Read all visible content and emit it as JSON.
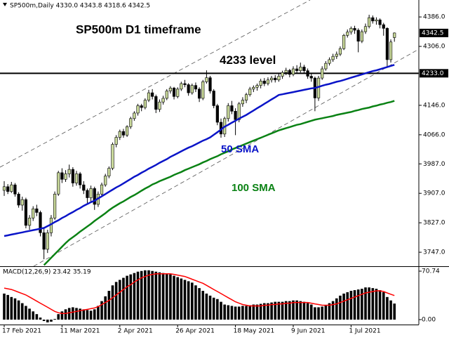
{
  "chart_data": {
    "type": "candlestick",
    "header": "SP500m,Daily  4330.0 4343.8 4318.6 4342.5",
    "title": "SP500m D1 timeframe",
    "categories": [
      "17 Feb 2021",
      null,
      null,
      null,
      null,
      null,
      null,
      null,
      null,
      null,
      null,
      null,
      null,
      null,
      null,
      null,
      "11 Mar 2021",
      null,
      null,
      null,
      null,
      null,
      null,
      null,
      null,
      null,
      null,
      null,
      null,
      null,
      null,
      null,
      "2 Apr 2021",
      null,
      null,
      null,
      null,
      null,
      null,
      null,
      null,
      null,
      null,
      null,
      null,
      null,
      null,
      null,
      "26 Apr 2021",
      null,
      null,
      null,
      null,
      null,
      null,
      null,
      null,
      null,
      null,
      null,
      null,
      null,
      null,
      null,
      "18 May 2021",
      null,
      null,
      null,
      null,
      null,
      null,
      null,
      null,
      null,
      null,
      null,
      null,
      null,
      null,
      null,
      "9 Jun 2021",
      null,
      null,
      null,
      null,
      null,
      null,
      null,
      null,
      null,
      null,
      null,
      null,
      null,
      null,
      null,
      "1 Jul 2021",
      null,
      null,
      null,
      null,
      null,
      null,
      null,
      null,
      null,
      null,
      null,
      null
    ],
    "open": [
      3915,
      3925,
      3912,
      3930,
      3905,
      3875,
      3890,
      3820,
      3840,
      3865,
      3855,
      3800,
      3755,
      3800,
      3840,
      3905,
      3963,
      3945,
      3960,
      3972,
      3935,
      3960,
      3930,
      3915,
      3895,
      3920,
      3877,
      3905,
      3930,
      3954,
      3975,
      4040,
      4059,
      4075,
      4065,
      4088,
      4110,
      4125,
      4145,
      4140,
      4160,
      4180,
      4170,
      4135,
      4155,
      4165,
      4185,
      4193,
      4170,
      4190,
      4205,
      4202,
      4180,
      4200,
      4190,
      4165,
      4210,
      4221,
      4185,
      4145,
      4100,
      4068,
      4110,
      4145,
      4130,
      4107,
      4150,
      4160,
      4175,
      4190,
      4195,
      4200,
      4212,
      4205,
      4215,
      4220,
      4215,
      4225,
      4235,
      4241,
      4230,
      4245,
      4240,
      4250,
      4240,
      4225,
      4220,
      4166,
      4220,
      4245,
      4260,
      4270,
      4279,
      4285,
      4300,
      4336,
      4345,
      4355,
      4350,
      4320,
      4346,
      4360,
      4384,
      4375,
      4378,
      4365,
      4355,
      4270,
      4330
    ],
    "high": [
      3940,
      3932,
      3938,
      3935,
      3910,
      3898,
      3895,
      3848,
      3872,
      3876,
      3860,
      3815,
      3808,
      3848,
      3912,
      3968,
      3975,
      3970,
      3985,
      3978,
      3968,
      3965,
      3940,
      3920,
      3928,
      3925,
      3912,
      3936,
      3960,
      3980,
      4045,
      4065,
      4080,
      4082,
      4092,
      4115,
      4130,
      4150,
      4150,
      4165,
      4188,
      4190,
      4175,
      4162,
      4172,
      4190,
      4198,
      4196,
      4195,
      4210,
      4215,
      4206,
      4205,
      4208,
      4195,
      4215,
      4241,
      4226,
      4190,
      4150,
      4110,
      4115,
      4152,
      4158,
      4138,
      4155,
      4168,
      4180,
      4196,
      4200,
      4205,
      4218,
      4220,
      4222,
      4226,
      4228,
      4232,
      4240,
      4248,
      4245,
      4252,
      4255,
      4262,
      4256,
      4246,
      4232,
      4224,
      4226,
      4252,
      4266,
      4276,
      4286,
      4292,
      4306,
      4340,
      4352,
      4360,
      4362,
      4355,
      4352,
      4368,
      4392,
      4390,
      4385,
      4382,
      4370,
      4358,
      4325,
      4343.8
    ],
    "low": [
      3900,
      3905,
      3908,
      3898,
      3868,
      3860,
      3812,
      3808,
      3832,
      3845,
      3790,
      3728,
      3745,
      3790,
      3835,
      3900,
      3935,
      3938,
      3950,
      3925,
      3928,
      3920,
      3905,
      3880,
      3885,
      3862,
      3870,
      3898,
      3925,
      3948,
      3970,
      4032,
      4052,
      4058,
      4060,
      4082,
      4104,
      4118,
      4130,
      4135,
      4155,
      4162,
      4125,
      4128,
      4148,
      4160,
      4178,
      4162,
      4165,
      4185,
      4195,
      4172,
      4175,
      4182,
      4155,
      4160,
      4205,
      4178,
      4138,
      4092,
      4058,
      4060,
      4102,
      4122,
      4065,
      4100,
      4142,
      4152,
      4170,
      4182,
      4186,
      4192,
      4198,
      4200,
      4208,
      4208,
      4210,
      4218,
      4228,
      4222,
      4225,
      4232,
      4235,
      4232,
      4218,
      4210,
      4130,
      4158,
      4215,
      4240,
      4254,
      4264,
      4272,
      4280,
      4296,
      4330,
      4338,
      4340,
      4290,
      4315,
      4340,
      4355,
      4368,
      4365,
      4355,
      4335,
      4250,
      4262,
      4318.6
    ],
    "close": [
      3925,
      3912,
      3930,
      3905,
      3875,
      3890,
      3820,
      3840,
      3865,
      3855,
      3800,
      3755,
      3800,
      3840,
      3905,
      3963,
      3945,
      3960,
      3972,
      3935,
      3960,
      3930,
      3915,
      3895,
      3920,
      3877,
      3905,
      3930,
      3954,
      3975,
      4040,
      4059,
      4075,
      4065,
      4088,
      4110,
      4125,
      4145,
      4140,
      4160,
      4180,
      4170,
      4135,
      4155,
      4165,
      4185,
      4193,
      4170,
      4190,
      4205,
      4202,
      4180,
      4200,
      4190,
      4165,
      4210,
      4221,
      4185,
      4145,
      4100,
      4068,
      4110,
      4145,
      4130,
      4107,
      4150,
      4160,
      4175,
      4190,
      4195,
      4200,
      4212,
      4205,
      4215,
      4220,
      4215,
      4225,
      4235,
      4241,
      4230,
      4245,
      4240,
      4250,
      4240,
      4225,
      4220,
      4166,
      4220,
      4245,
      4260,
      4270,
      4279,
      4285,
      4300,
      4336,
      4345,
      4355,
      4350,
      4320,
      4346,
      4360,
      4384,
      4375,
      4378,
      4365,
      4355,
      4270,
      4318,
      4342.5
    ],
    "up_color": "#c9d99a",
    "down_color": "#000000",
    "ylim": [
      3709,
      4432
    ],
    "yticks": [
      {
        "value": 4386,
        "label": "4386.0"
      },
      {
        "value": 4306,
        "label": "4306.0"
      },
      {
        "value": 4146,
        "label": "4146.0"
      },
      {
        "value": 4066,
        "label": "4066.0"
      },
      {
        "value": 3987,
        "label": "3987.0"
      },
      {
        "value": 3907,
        "label": "3907.0"
      },
      {
        "value": 3827,
        "label": "3827.0"
      },
      {
        "value": 3747,
        "label": "3747.0"
      }
    ],
    "level": {
      "value": 4233,
      "label": "4233.0",
      "annotation": "4233 level"
    },
    "series": [
      {
        "name": "50 SMA",
        "color": "#0a14c8",
        "values": [
          3791,
          3793,
          3795,
          3797,
          3799,
          3801,
          3803,
          3805,
          3807,
          3809,
          3811,
          3813,
          3818,
          3823,
          3829,
          3834,
          3840,
          3845,
          3851,
          3856,
          3862,
          3867,
          3873,
          3878,
          3883,
          3887,
          3893,
          3899,
          3905,
          3911,
          3917,
          3923,
          3928,
          3934,
          3940,
          3946,
          3952,
          3957,
          3963,
          3968,
          3974,
          3979,
          3984,
          3990,
          3995,
          4000,
          4006,
          4011,
          4016,
          4021,
          4026,
          4031,
          4035,
          4040,
          4045,
          4050,
          4054,
          4059,
          4066,
          4073,
          4080,
          4088,
          4093,
          4099,
          4104,
          4110,
          4115,
          4120,
          4126,
          4132,
          4138,
          4144,
          4150,
          4156,
          4162,
          4168,
          4174,
          4176,
          4178,
          4180,
          4182,
          4184,
          4186,
          4188,
          4190,
          4192,
          4193,
          4196,
          4199,
          4202,
          4204,
          4207,
          4210,
          4212,
          4215,
          4218,
          4221,
          4224,
          4227,
          4230,
          4233,
          4236,
          4239,
          4241,
          4244,
          4247,
          4250,
          4253,
          4256
        ]
      },
      {
        "name": "100 SMA",
        "color": "#0a8214",
        "values": [
          null,
          null,
          null,
          null,
          null,
          null,
          null,
          null,
          null,
          null,
          null,
          3712,
          3722,
          3732,
          3742,
          3752,
          3762,
          3772,
          3781,
          3788,
          3795,
          3803,
          3810,
          3817,
          3824,
          3832,
          3839,
          3846,
          3853,
          3861,
          3868,
          3874,
          3880,
          3885,
          3891,
          3897,
          3902,
          3908,
          3914,
          3920,
          3925,
          3931,
          3935,
          3940,
          3944,
          3948,
          3952,
          3957,
          3961,
          3965,
          3970,
          3974,
          3978,
          3982,
          3986,
          3991,
          3995,
          4000,
          4004,
          4008,
          4013,
          4017,
          4021,
          4026,
          4030,
          4034,
          4038,
          4042,
          4046,
          4050,
          4054,
          4058,
          4062,
          4066,
          4070,
          4074,
          4078,
          4081,
          4084,
          4087,
          4090,
          4093,
          4095,
          4098,
          4101,
          4104,
          4107,
          4109,
          4111,
          4113,
          4115,
          4117,
          4120,
          4122,
          4124,
          4126,
          4128,
          4131,
          4133,
          4136,
          4138,
          4140,
          4143,
          4145,
          4148,
          4150,
          4153,
          4155,
          4158
        ]
      }
    ],
    "macd": {
      "label": "MACD(12,26,9) 23.42 35.19",
      "ylim": [
        -7.2,
        76.9
      ],
      "yticks": [
        {
          "value": 70.74,
          "label": "70.74"
        },
        {
          "value": 0,
          "label": "0.00"
        }
      ],
      "histogram": {
        "color": "#000000",
        "values": [
          38,
          36,
          33,
          31,
          28,
          24,
          20,
          16,
          12,
          8,
          3,
          -2,
          -4,
          -3,
          1,
          8,
          12,
          15,
          17,
          18,
          17,
          16,
          15,
          14,
          13,
          15,
          20,
          27,
          34,
          42,
          50,
          55,
          58,
          61,
          64,
          66,
          68,
          70,
          71,
          72,
          72,
          71,
          70,
          69,
          68,
          67,
          66,
          64,
          62,
          60,
          58,
          56,
          54,
          50,
          46,
          42,
          38,
          35,
          32,
          30,
          26,
          22,
          21,
          20,
          19,
          19,
          20,
          20,
          21,
          22,
          22,
          23,
          24,
          24,
          25,
          26,
          26,
          26,
          27,
          27,
          28,
          28,
          27,
          26,
          24,
          22,
          18,
          18,
          19,
          21,
          24,
          27,
          31,
          35,
          38,
          40,
          42,
          43,
          44,
          45,
          47,
          47,
          46,
          45,
          43,
          40,
          33,
          28,
          23.42
        ]
      },
      "signal": {
        "color": "#ff0000",
        "values": [
          46,
          45,
          44,
          42,
          40,
          38,
          36,
          33,
          30,
          27,
          24,
          21,
          18,
          15,
          12,
          10,
          9,
          9,
          10,
          11,
          12,
          13,
          14,
          15,
          16,
          17,
          19,
          22,
          25,
          28,
          32,
          36,
          40,
          44,
          48,
          51,
          55,
          58,
          61,
          63,
          65,
          66,
          67,
          67,
          67,
          67,
          67,
          66,
          65,
          64,
          63,
          61,
          59,
          57,
          55,
          53,
          50,
          47,
          44,
          41,
          38,
          35,
          32,
          29,
          26,
          24,
          22,
          21,
          20,
          20,
          20,
          20,
          21,
          21,
          22,
          22,
          23,
          23,
          24,
          24,
          25,
          25,
          25,
          25,
          25,
          24,
          23,
          22,
          21,
          21,
          21,
          22,
          23,
          25,
          27,
          29,
          31,
          33,
          35,
          37,
          39,
          40,
          41,
          42,
          42,
          41,
          39,
          37,
          35.19
        ]
      }
    }
  }
}
